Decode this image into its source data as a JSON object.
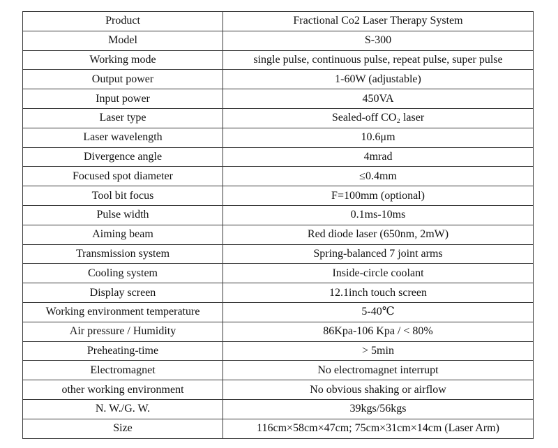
{
  "spec_table": {
    "rows": [
      {
        "param": "Product",
        "value": "Fractional Co2 Laser Therapy System"
      },
      {
        "param": "Model",
        "value": "S-300"
      },
      {
        "param": "Working mode",
        "value": "single pulse, continuous pulse, repeat pulse, super pulse"
      },
      {
        "param": "Output power",
        "value": "1-60W (adjustable)"
      },
      {
        "param": "Input power",
        "value": "450VA"
      },
      {
        "param": "Laser type",
        "value": "Sealed-off CO₂ laser"
      },
      {
        "param": "Laser wavelength",
        "value": "10.6μm"
      },
      {
        "param": "Divergence angle",
        "value": "4mrad"
      },
      {
        "param": "Focused spot diameter",
        "value": "≤0.4mm"
      },
      {
        "param": "Tool bit focus",
        "value": "F=100mm (optional)"
      },
      {
        "param": "Pulse width",
        "value": "0.1ms-10ms"
      },
      {
        "param": "Aiming beam",
        "value": "Red diode laser (650nm, 2mW)"
      },
      {
        "param": "Transmission system",
        "value": "Spring-balanced 7 joint arms"
      },
      {
        "param": "Cooling system",
        "value": "Inside-circle coolant"
      },
      {
        "param": "Display screen",
        "value": "12.1inch touch screen"
      },
      {
        "param": "Working environment temperature",
        "value": "5-40℃"
      },
      {
        "param": "Air pressure / Humidity",
        "value": "86Kpa-106 Kpa / < 80%"
      },
      {
        "param": "Preheating-time",
        "value": "> 5min"
      },
      {
        "param": "Electromagnet",
        "value": "No electromagnet interrupt"
      },
      {
        "param": "other working environment",
        "value": "No obvious shaking or airflow"
      },
      {
        "param": "N. W./G. W.",
        "value": "39kgs/56kgs"
      },
      {
        "param": "Size",
        "value": "116cm×58cm×47cm; 75cm×31cm×14cm (Laser Arm)"
      }
    ]
  }
}
